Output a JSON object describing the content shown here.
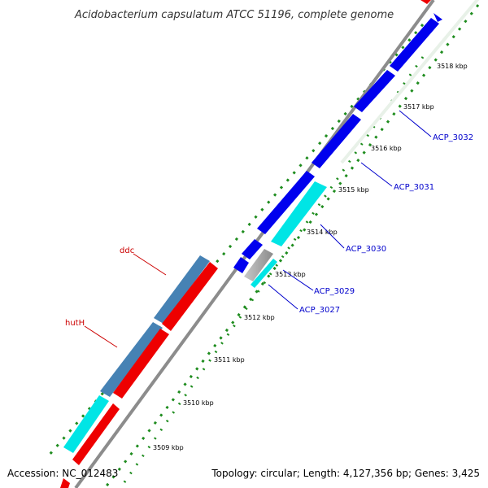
{
  "title": "Acidobacterium capsulatum ATCC 51196, complete genome",
  "footer": {
    "accession": "Accession: NC_012483",
    "summary": "Topology: circular; Length: 4,127,356 bp; Genes: 3,425"
  },
  "colors": {
    "forward_cds": "#0000ee",
    "reverse_cds": "#ee0000",
    "steel": "#4682b4",
    "cyan": "#00e5e5",
    "gray": "#a9a9a9",
    "backbone": "#8c8c8c",
    "ticks": "#1e8c1e",
    "label_blue": "#0000cc",
    "label_red": "#cc0000"
  },
  "scale_labels": [
    "3509 kbp",
    "3510 kbp",
    "3511 kbp",
    "3512 kbp",
    "3513 kbp",
    "3514 kbp",
    "3515 kbp",
    "3516 kbp",
    "3517 kbp",
    "3518 kbp"
  ],
  "gene_labels": [
    {
      "text": "ACP_3032",
      "color": "blue"
    },
    {
      "text": "ACP_3031",
      "color": "blue"
    },
    {
      "text": "ACP_3030",
      "color": "blue"
    },
    {
      "text": "ACP_3029",
      "color": "blue"
    },
    {
      "text": "ACP_3027",
      "color": "blue"
    },
    {
      "text": "ddc",
      "color": "red"
    },
    {
      "text": "hutH",
      "color": "red"
    }
  ]
}
